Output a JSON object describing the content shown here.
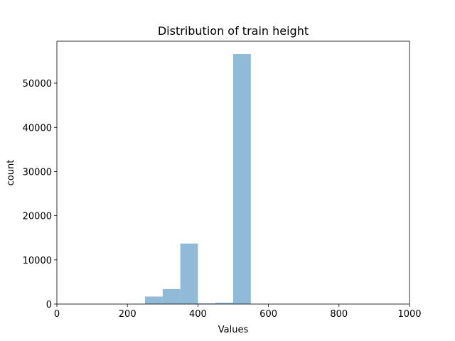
{
  "chart_data": {
    "type": "bar",
    "title": "Distribution of train height",
    "xlabel": "Values",
    "ylabel": "count",
    "xlim": [
      0,
      1000
    ],
    "ylim": [
      0,
      59500
    ],
    "xticks": [
      0,
      200,
      400,
      600,
      800,
      1000
    ],
    "yticks": [
      0,
      10000,
      20000,
      30000,
      40000,
      50000
    ],
    "grid": false,
    "bins": [
      {
        "x0": 250,
        "x1": 300,
        "count": 1700
      },
      {
        "x0": 300,
        "x1": 350,
        "count": 3400
      },
      {
        "x0": 350,
        "x1": 400,
        "count": 13700
      },
      {
        "x0": 400,
        "x1": 450,
        "count": 150
      },
      {
        "x0": 450,
        "x1": 500,
        "count": 300
      },
      {
        "x0": 500,
        "x1": 550,
        "count": 56600
      }
    ],
    "bar_color": "#8fbbd9"
  }
}
